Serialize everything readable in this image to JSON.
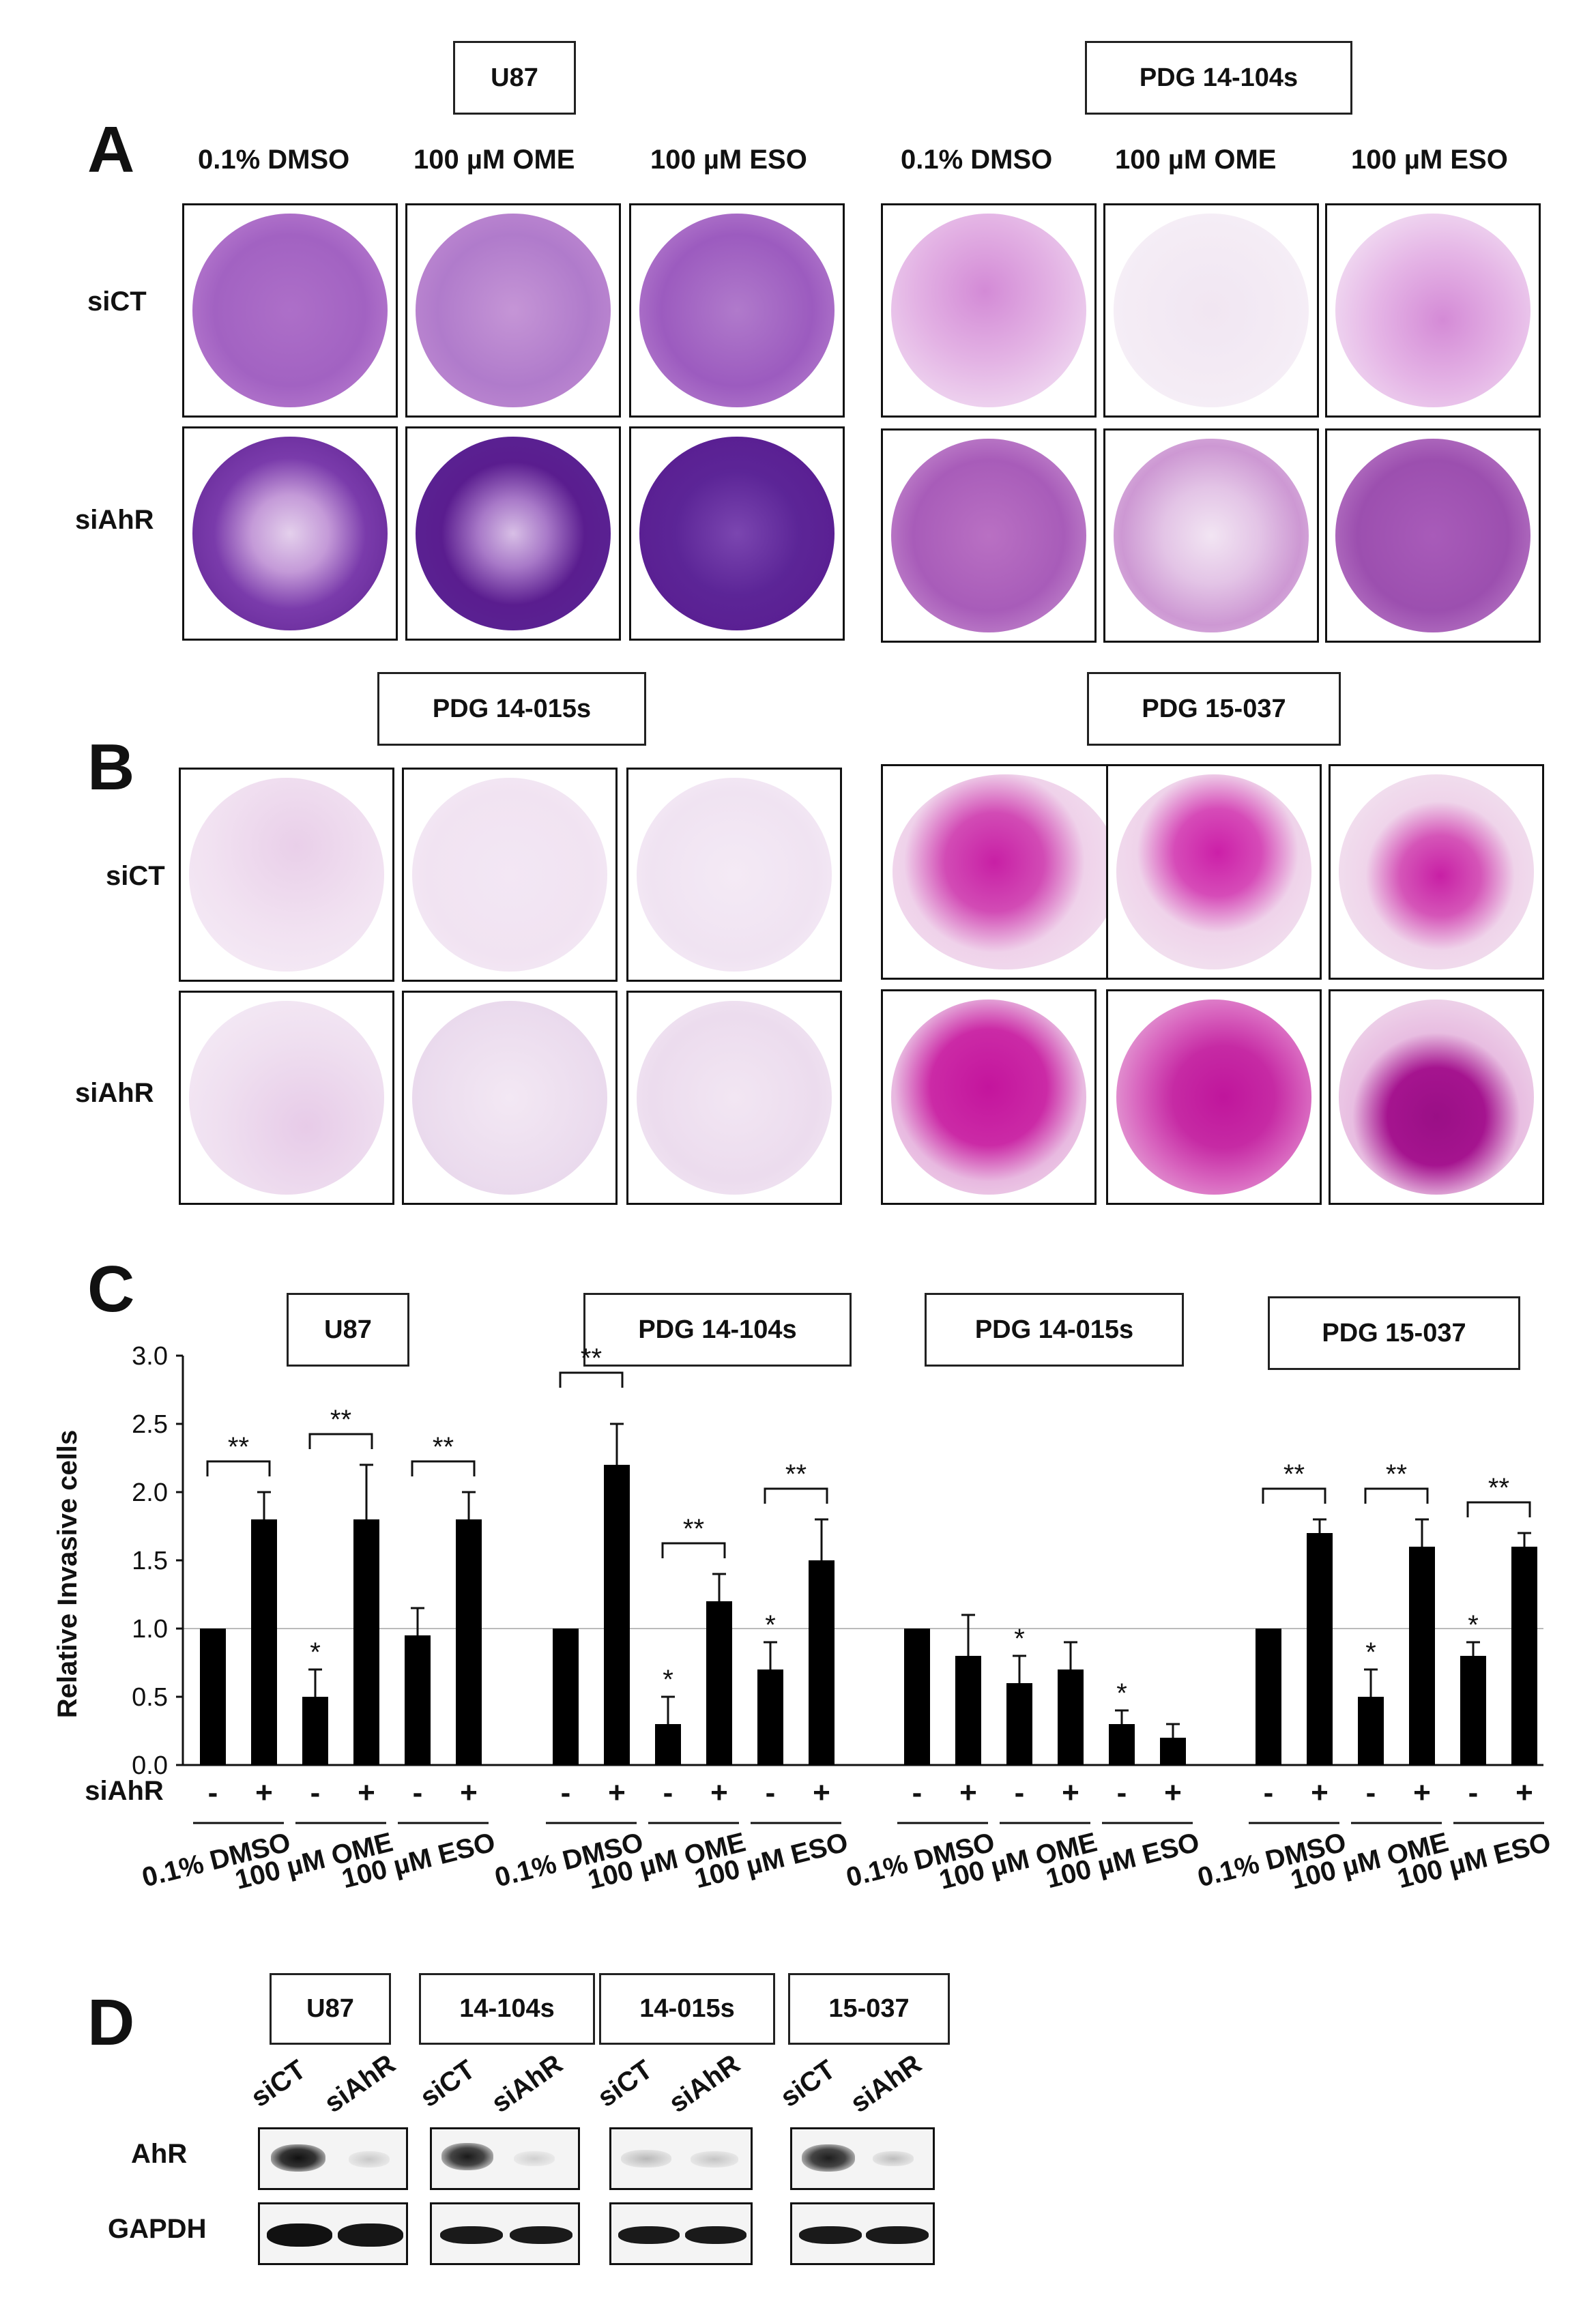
{
  "panels": {
    "A": {
      "letter": "A",
      "groups": [
        "U87",
        "PDG 14-104s"
      ],
      "conditions": [
        "0.1% DMSO",
        "100 µM  OME",
        "100 µM  ESO"
      ],
      "rows": [
        "siCT",
        "siAhR"
      ]
    },
    "B": {
      "letter": "B",
      "groups": [
        "PDG 14-015s",
        "PDG 15-037"
      ],
      "rows": [
        "siCT",
        "siAhR"
      ]
    },
    "C": {
      "letter": "C"
    },
    "D": {
      "letter": "D",
      "groups": [
        "U87",
        "14-104s",
        "14-015s",
        "15-037"
      ],
      "lanes": [
        "siCT",
        "siAhR"
      ],
      "rows": [
        "AhR",
        "GAPDH"
      ]
    }
  },
  "chart_data": {
    "type": "bar",
    "ylabel": "Relative Invasive cells",
    "ylim": [
      0,
      3.0
    ],
    "yticks": [
      "0.0",
      "0.5",
      "1.0",
      "1.5",
      "2.0",
      "2.5",
      "3.0"
    ],
    "reference_line": 1.0,
    "xrow_label": "siAhR",
    "sign_minus": "-",
    "sign_plus": "+",
    "condition_labels": [
      "0.1% DMSO",
      "100 µM OME",
      "100 µM ESO"
    ],
    "groups": [
      {
        "name": "U87",
        "values": [
          1.0,
          1.8,
          0.5,
          1.8,
          0.95,
          1.8
        ],
        "errors": [
          0,
          0.2,
          0.2,
          0.4,
          0.2,
          0.2
        ],
        "stars": [
          "",
          "",
          "*",
          "",
          "",
          ""
        ],
        "brackets": [
          "**",
          "**",
          "**"
        ]
      },
      {
        "name": "PDG 14-104s",
        "values": [
          1.0,
          2.2,
          0.3,
          1.2,
          0.7,
          1.5
        ],
        "errors": [
          0,
          0.3,
          0.2,
          0.2,
          0.2,
          0.3
        ],
        "stars": [
          "",
          "",
          "*",
          "",
          "*",
          ""
        ],
        "brackets": [
          "**",
          "**",
          "**"
        ]
      },
      {
        "name": "PDG 14-015s",
        "values": [
          1.0,
          0.8,
          0.6,
          0.7,
          0.3,
          0.2
        ],
        "errors": [
          0,
          0.3,
          0.2,
          0.2,
          0.1,
          0.1
        ],
        "stars": [
          "",
          "",
          "*",
          "",
          "*",
          ""
        ],
        "brackets": [
          "",
          "",
          ""
        ]
      },
      {
        "name": "PDG 15-037",
        "values": [
          1.0,
          1.7,
          0.5,
          1.6,
          0.8,
          1.6
        ],
        "errors": [
          0,
          0.1,
          0.2,
          0.2,
          0.1,
          0.1
        ],
        "stars": [
          "",
          "",
          "*",
          "",
          "*",
          ""
        ],
        "brackets": [
          "**",
          "**",
          "**"
        ]
      }
    ]
  },
  "colors": {
    "bar": "#000000",
    "stain_u87": "#8a3fb0",
    "stain_u87_dark": "#5a1d8f",
    "stain_pdg104": "#c04cc4",
    "stain_pdg015": "#c98fc9",
    "stain_pdg037": "#cc1fa8"
  }
}
